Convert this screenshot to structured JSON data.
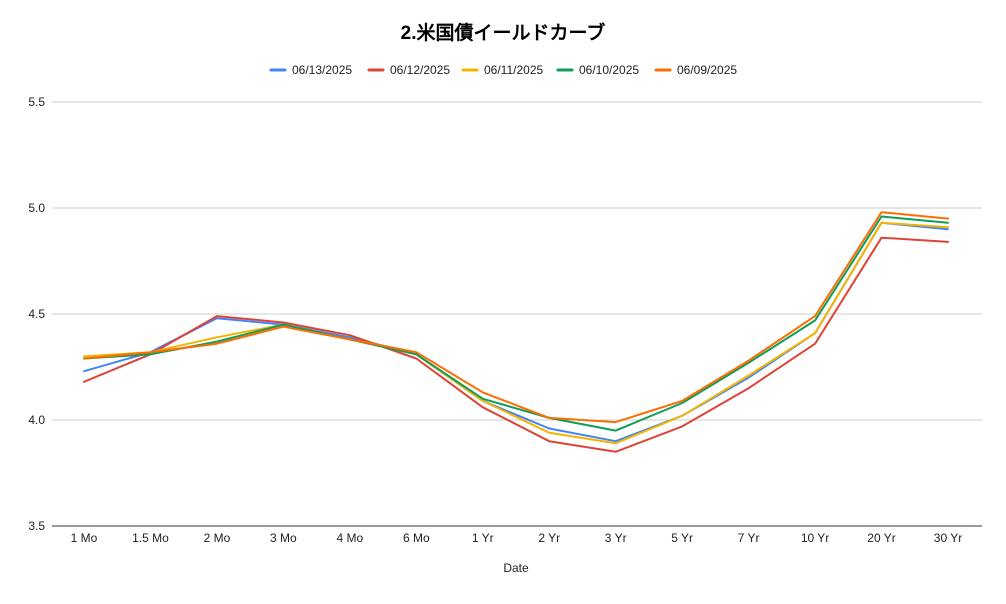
{
  "chart_data": {
    "type": "line",
    "title": "2.米国債イールドカーブ",
    "xlabel": "Date",
    "ylabel": "",
    "ylim": [
      3.5,
      5.5
    ],
    "yticks": [
      "3.5",
      "4.0",
      "4.5",
      "5.0",
      "5.5"
    ],
    "grid": true,
    "legend_position": "top",
    "categories": [
      "1 Mo",
      "1.5 Mo",
      "2 Mo",
      "3 Mo",
      "4 Mo",
      "6 Mo",
      "1 Yr",
      "2 Yr",
      "3 Yr",
      "5 Yr",
      "7 Yr",
      "10 Yr",
      "20 Yr",
      "30 Yr"
    ],
    "series": [
      {
        "name": "06/13/2025",
        "color": "#4285F4",
        "values": [
          4.23,
          4.32,
          4.48,
          4.45,
          4.39,
          4.31,
          4.09,
          3.96,
          3.9,
          4.02,
          4.2,
          4.41,
          4.93,
          4.9
        ]
      },
      {
        "name": "06/12/2025",
        "color": "#DB4437",
        "values": [
          4.18,
          4.31,
          4.49,
          4.46,
          4.4,
          4.29,
          4.06,
          3.9,
          3.85,
          3.97,
          4.15,
          4.36,
          4.86,
          4.84
        ]
      },
      {
        "name": "06/11/2025",
        "color": "#F4B400",
        "values": [
          4.3,
          4.32,
          4.39,
          4.45,
          4.38,
          4.31,
          4.09,
          3.94,
          3.89,
          4.02,
          4.21,
          4.41,
          4.93,
          4.91
        ]
      },
      {
        "name": "06/10/2025",
        "color": "#0F9D58",
        "values": [
          4.29,
          4.31,
          4.37,
          4.45,
          4.38,
          4.31,
          4.1,
          4.01,
          3.95,
          4.08,
          4.27,
          4.47,
          4.96,
          4.93
        ]
      },
      {
        "name": "06/09/2025",
        "color": "#FF6D01",
        "values": [
          4.29,
          4.32,
          4.36,
          4.44,
          4.38,
          4.32,
          4.13,
          4.01,
          3.99,
          4.09,
          4.28,
          4.49,
          4.98,
          4.95
        ]
      }
    ]
  }
}
